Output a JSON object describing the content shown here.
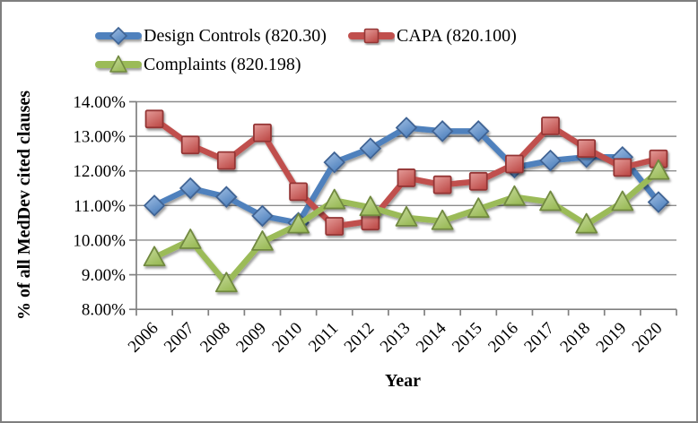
{
  "window": {
    "background": "#ffffff",
    "border_color": "#7f7f7f"
  },
  "chart_data": {
    "type": "line",
    "title": "",
    "xlabel": "Year",
    "ylabel": "% of all MedDev cited clauses",
    "x": [
      "2006",
      "2007",
      "2008",
      "2009",
      "2010",
      "2011",
      "2012",
      "2013",
      "2014",
      "2015",
      "2016",
      "2017",
      "2018",
      "2019",
      "2020"
    ],
    "series": [
      {
        "name": "Design Controls (820.30)",
        "marker": "diamond",
        "color": "#4F81BD",
        "marker_fill_light": "#A3C1E5",
        "marker_stroke": "#3F6494",
        "values": [
          11.0,
          11.5,
          11.25,
          10.7,
          10.5,
          12.25,
          12.65,
          13.25,
          13.15,
          13.15,
          12.1,
          12.3,
          12.4,
          12.4,
          11.1
        ]
      },
      {
        "name": "CAPA (820.100)",
        "marker": "square",
        "color": "#C0504D",
        "marker_fill_light": "#E49C99",
        "marker_stroke": "#943634",
        "values": [
          13.5,
          12.75,
          12.3,
          13.1,
          11.4,
          10.4,
          10.55,
          11.8,
          11.6,
          11.7,
          12.2,
          13.3,
          12.65,
          12.1,
          12.35
        ]
      },
      {
        "name": "Complaints (820.198)",
        "marker": "triangle",
        "color": "#9BBB59",
        "marker_fill_light": "#C9DC9F",
        "marker_stroke": "#71893F",
        "values": [
          9.5,
          10.0,
          8.75,
          9.95,
          10.45,
          11.15,
          10.95,
          10.65,
          10.55,
          10.9,
          11.25,
          11.1,
          10.45,
          11.1,
          12.0
        ]
      }
    ],
    "ylim": [
      8,
      14
    ],
    "y_ticks": [
      8,
      9,
      10,
      11,
      12,
      13,
      14
    ],
    "y_tick_labels": [
      "8.00%",
      "9.00%",
      "10.00%",
      "11.00%",
      "12.00%",
      "13.00%",
      "14.00%"
    ],
    "grid": "horizontal",
    "legend_position": "top",
    "gridline_color": "#8C8C8C",
    "axis_color": "#808080",
    "text_color": "#000000"
  }
}
